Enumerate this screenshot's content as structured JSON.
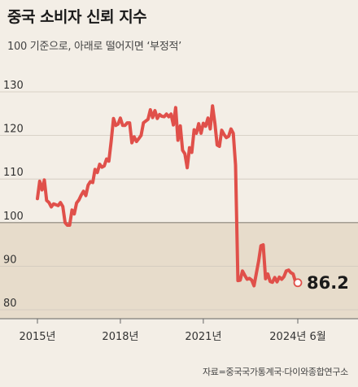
{
  "chart_data": {
    "type": "line",
    "title": "중국 소비자 신뢰 지수",
    "subtitle": "100 기준으로, 아래로 떨어지면 ‘부정적’",
    "source": "자료=중국국가통계국·다이와종합연구소",
    "xlabel": "",
    "ylabel": "",
    "ylim": [
      80,
      130
    ],
    "xlim": [
      "2015-01",
      "2024-06"
    ],
    "yticks": [
      80,
      90,
      100,
      110,
      120,
      130
    ],
    "ytick_labels": [
      "80",
      "90",
      "100",
      "110",
      "120",
      "130"
    ],
    "xtick_labels": [
      "2015년",
      "2018년",
      "2021년",
      "2024년 6월"
    ],
    "xtick_dates": [
      "2015-01",
      "2018-01",
      "2021-01",
      "2024-06"
    ],
    "baseline": 100,
    "grid": true,
    "last_value_label": "86.2",
    "colors": {
      "line": "#e0504a",
      "background": "#f3eee6",
      "below_baseline_band": "#e7dccb",
      "grid": "#cfc8bd",
      "axis": "#666666"
    },
    "series": [
      {
        "x": [
          "2015-01",
          "2015-02",
          "2015-03",
          "2015-04",
          "2015-05",
          "2015-06",
          "2015-07",
          "2015-08",
          "2015-09",
          "2015-10",
          "2015-11",
          "2015-12",
          "2016-01",
          "2016-02",
          "2016-03",
          "2016-04",
          "2016-05",
          "2016-06",
          "2016-07",
          "2016-08",
          "2016-09",
          "2016-10",
          "2016-11",
          "2016-12",
          "2017-01",
          "2017-02",
          "2017-03",
          "2017-04",
          "2017-05",
          "2017-06",
          "2017-07",
          "2017-08",
          "2017-09",
          "2017-10",
          "2017-11",
          "2017-12",
          "2018-01",
          "2018-02",
          "2018-03",
          "2018-04",
          "2018-05",
          "2018-06",
          "2018-07",
          "2018-08",
          "2018-09",
          "2018-10",
          "2018-11",
          "2018-12",
          "2019-01",
          "2019-02",
          "2019-03",
          "2019-04",
          "2019-05",
          "2019-06",
          "2019-07",
          "2019-08",
          "2019-09",
          "2019-10",
          "2019-11",
          "2019-12",
          "2020-01",
          "2020-02",
          "2020-03",
          "2020-04",
          "2020-05",
          "2020-06",
          "2020-07",
          "2020-08",
          "2020-09",
          "2020-10",
          "2020-11",
          "2020-12",
          "2021-01",
          "2021-02",
          "2021-03",
          "2021-04",
          "2021-05",
          "2021-06",
          "2021-07",
          "2021-08",
          "2021-09",
          "2021-10",
          "2021-11",
          "2021-12",
          "2022-01",
          "2022-02",
          "2022-03",
          "2022-04",
          "2022-05",
          "2022-06",
          "2022-07",
          "2022-08",
          "2022-09",
          "2022-10",
          "2022-11",
          "2022-12",
          "2023-01",
          "2023-02",
          "2023-03",
          "2023-04",
          "2023-05",
          "2023-06",
          "2023-07",
          "2023-08",
          "2023-09",
          "2023-10",
          "2023-11",
          "2023-12",
          "2024-01",
          "2024-02",
          "2024-03",
          "2024-04",
          "2024-05",
          "2024-06"
        ],
        "y": [
          105.5,
          109.5,
          107.5,
          109.8,
          105.1,
          104.6,
          103.6,
          104.3,
          104.1,
          103.9,
          104.6,
          103.7,
          100.0,
          99.4,
          99.4,
          102.9,
          102.0,
          104.5,
          105.2,
          106.3,
          107.2,
          106.2,
          108.6,
          109.4,
          109.2,
          112.2,
          111.5,
          113.4,
          112.7,
          113.0,
          114.6,
          114.1,
          118.6,
          123.9,
          122.3,
          122.6,
          124.0,
          122.3,
          122.3,
          122.9,
          122.9,
          118.3,
          119.7,
          118.6,
          119.3,
          120.0,
          122.9,
          123.3,
          123.7,
          125.9,
          124.1,
          125.7,
          123.9,
          124.8,
          124.4,
          124.3,
          124.9,
          124.3,
          124.9,
          122.4,
          126.4,
          118.9,
          122.2,
          116.6,
          115.8,
          112.6,
          117.2,
          116.1,
          121.3,
          120.5,
          122.7,
          120.5,
          122.8,
          122.1,
          124.0,
          121.5,
          126.8,
          122.8,
          117.8,
          117.5,
          121.2,
          120.2,
          119.5,
          119.8,
          121.5,
          120.5,
          113.2,
          86.7,
          86.8,
          88.9,
          87.9,
          87.0,
          87.2,
          86.8,
          85.5,
          88.3,
          91.2,
          94.7,
          94.9,
          87.1,
          88.2,
          86.5,
          86.3,
          87.4,
          86.4,
          87.5,
          87.0,
          87.6,
          88.9,
          89.1,
          88.5,
          88.2,
          86.4,
          86.2
        ]
      }
    ]
  }
}
